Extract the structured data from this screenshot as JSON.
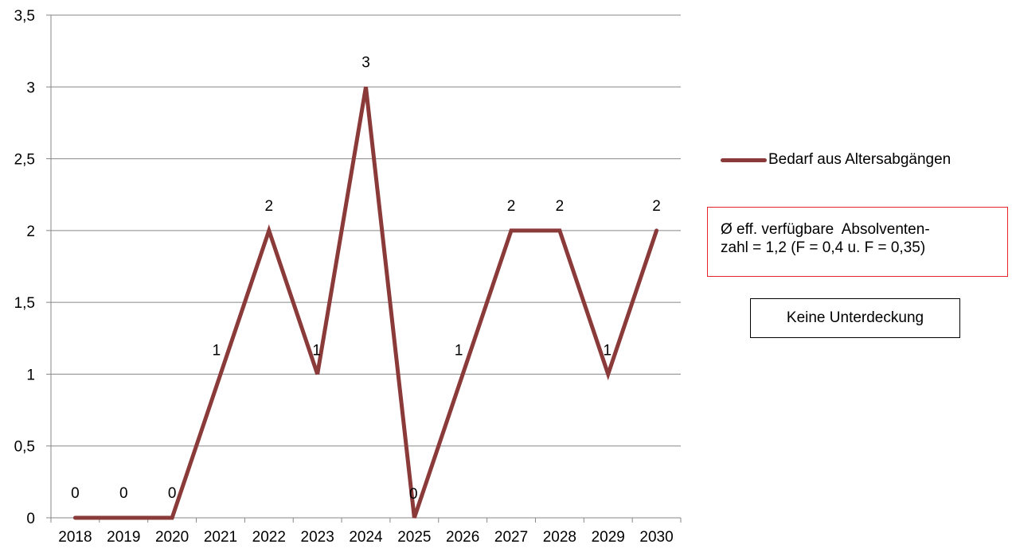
{
  "chart_data": {
    "type": "line",
    "categories": [
      "2018",
      "2019",
      "2020",
      "2021",
      "2022",
      "2023",
      "2024",
      "2025",
      "2026",
      "2027",
      "2028",
      "2029",
      "2030"
    ],
    "series": [
      {
        "name": "Bedarf aus Altersabgängen",
        "values": [
          0,
          0,
          0,
          1,
          2,
          1,
          3,
          0,
          1,
          2,
          2,
          1,
          2
        ],
        "color": "#8b3a3a"
      }
    ],
    "data_labels": [
      "0",
      "0",
      "0",
      "1",
      "2",
      "1",
      "3",
      "0",
      "1",
      "2",
      "2",
      "1",
      "2"
    ],
    "ylim": [
      0,
      3.5
    ],
    "y_ticks": [
      0,
      0.5,
      1,
      1.5,
      2,
      2.5,
      3,
      3.5
    ],
    "y_tick_labels": [
      "0",
      "0,5",
      "1",
      "1,5",
      "2",
      "2,5",
      "3",
      "3,5"
    ],
    "grid": "horizontal",
    "legend_position": "right",
    "title": "",
    "xlabel": "",
    "ylabel": "",
    "annotations": {
      "note_lines": [
        "Ø eff. verfügbare  Absolventen-",
        "zahl = 1,2 (F = 0,4 u. F = 0,35)"
      ],
      "note_border_color": "#e8232a",
      "status": "Keine Unterdeckung"
    }
  }
}
